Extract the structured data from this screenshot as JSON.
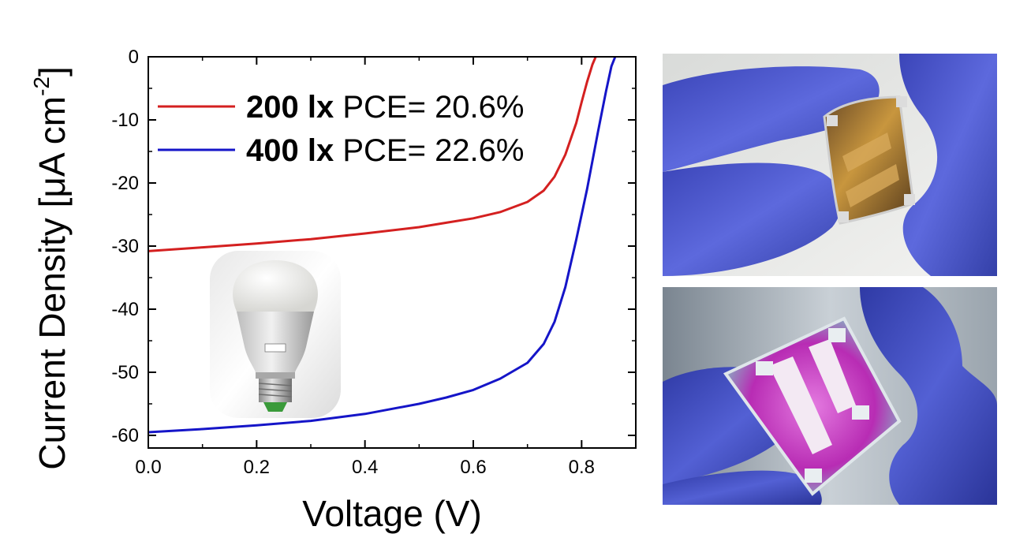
{
  "chart_data": {
    "type": "line",
    "xlabel": "Voltage (V)",
    "ylabel": "Current Density [μA cm",
    "ylabel_sup": "-2",
    "ylabel_close": "]",
    "xlim": [
      0,
      0.9
    ],
    "ylim": [
      -62,
      0
    ],
    "xticks": [
      0.0,
      0.2,
      0.4,
      0.6,
      0.8
    ],
    "xtick_labels": [
      "0.0",
      "0.2",
      "0.4",
      "0.6",
      "0.8"
    ],
    "yticks": [
      0,
      -10,
      -20,
      -30,
      -40,
      -50,
      -60
    ],
    "ytick_labels": [
      "0",
      "-10",
      "-20",
      "-30",
      "-40",
      "-50",
      "-60"
    ],
    "grid": false,
    "legend_position": "top-left",
    "series": [
      {
        "name": "200 lx",
        "legend_note": "PCE= 20.6%",
        "color": "#d42020",
        "x": [
          0.0,
          0.1,
          0.2,
          0.3,
          0.4,
          0.5,
          0.55,
          0.6,
          0.65,
          0.7,
          0.73,
          0.75,
          0.77,
          0.79,
          0.8,
          0.81,
          0.82,
          0.826
        ],
        "y": [
          -30.8,
          -30.2,
          -29.6,
          -28.9,
          -28.0,
          -27.0,
          -26.3,
          -25.6,
          -24.6,
          -23.0,
          -21.2,
          -19.0,
          -15.5,
          -10.5,
          -7.2,
          -4.0,
          -1.2,
          0.0
        ]
      },
      {
        "name": "400 lx",
        "legend_note": "PCE= 22.6%",
        "color": "#1515c8",
        "x": [
          0.0,
          0.1,
          0.2,
          0.3,
          0.4,
          0.5,
          0.55,
          0.6,
          0.65,
          0.7,
          0.73,
          0.75,
          0.77,
          0.79,
          0.81,
          0.83,
          0.845,
          0.855,
          0.862
        ],
        "y": [
          -59.5,
          -59.0,
          -58.4,
          -57.7,
          -56.6,
          -55.0,
          -54.0,
          -52.8,
          -51.0,
          -48.5,
          -45.5,
          -42.0,
          -36.5,
          -29.0,
          -21.0,
          -12.0,
          -5.5,
          -1.5,
          0.0
        ]
      }
    ]
  },
  "colors": {
    "glove": "#5560d6",
    "device_top": "#b88a3c",
    "device_bottom": "#cc3ec8"
  }
}
